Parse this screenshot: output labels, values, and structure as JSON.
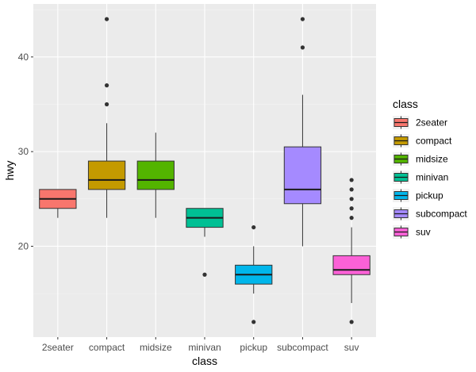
{
  "chart_data": {
    "type": "boxplot",
    "xlabel": "class",
    "ylabel": "hwy",
    "ylim": [
      10.4,
      45.6
    ],
    "yticks": [
      20,
      30,
      40
    ],
    "grid": true,
    "legend": {
      "title": "class",
      "position": "right"
    },
    "categories": [
      "2seater",
      "compact",
      "midsize",
      "minivan",
      "pickup",
      "subcompact",
      "suv"
    ],
    "boxes": [
      {
        "category": "2seater",
        "color": "#F8766D",
        "lower_whisker": 23,
        "q1": 24,
        "median": 25,
        "q3": 26,
        "upper_whisker": 26,
        "outliers": []
      },
      {
        "category": "compact",
        "color": "#C49A00",
        "lower_whisker": 23,
        "q1": 26,
        "median": 27,
        "q3": 29,
        "upper_whisker": 33,
        "outliers": [
          35,
          37,
          44
        ]
      },
      {
        "category": "midsize",
        "color": "#53B400",
        "lower_whisker": 23,
        "q1": 26,
        "median": 27,
        "q3": 29,
        "upper_whisker": 32,
        "outliers": []
      },
      {
        "category": "minivan",
        "color": "#00C094",
        "lower_whisker": 21,
        "q1": 22,
        "median": 23,
        "q3": 24,
        "upper_whisker": 24,
        "outliers": [
          17
        ]
      },
      {
        "category": "pickup",
        "color": "#00B6EB",
        "lower_whisker": 15,
        "q1": 16,
        "median": 17,
        "q3": 18,
        "upper_whisker": 20,
        "outliers": [
          12,
          22
        ]
      },
      {
        "category": "subcompact",
        "color": "#A58AFF",
        "lower_whisker": 20,
        "q1": 24.5,
        "median": 26,
        "q3": 30.5,
        "upper_whisker": 36,
        "outliers": [
          41,
          44
        ]
      },
      {
        "category": "suv",
        "color": "#FB61D7",
        "lower_whisker": 14,
        "q1": 17,
        "median": 17.5,
        "q3": 19,
        "upper_whisker": 22,
        "outliers": [
          12,
          23,
          24,
          25,
          26,
          27
        ]
      }
    ]
  }
}
